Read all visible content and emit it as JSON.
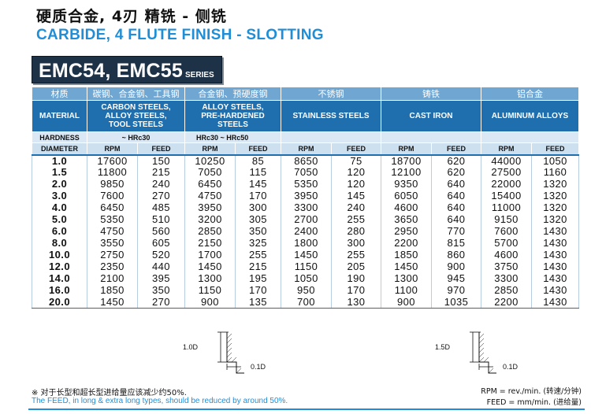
{
  "title_cn": "硬质合金, 4刃 精铣 - 侧铣",
  "title_en": "CARBIDE, 4 FLUTE FINISH - SLOTTING",
  "series": {
    "name": "EMC54, EMC55",
    "suffix": "SERIES"
  },
  "table": {
    "material_cn_label": "材质",
    "material_label": "MATERIAL",
    "hardness_label": "HARDNESS",
    "diameter_label": "DIAMETER",
    "rpm_label": "RPM",
    "feed_label": "FEED",
    "materials": [
      {
        "cn": "碳钢、合金钢、工具钢",
        "en": [
          "CARBON STEELS,",
          "ALLOY STEELS,",
          "TOOL STEELS"
        ],
        "hardness": "~ HRc30"
      },
      {
        "cn": "合金钢、预硬度钢",
        "en": [
          "ALLOY STEELS,",
          "PRE-HARDENED STEELS"
        ],
        "hardness": "HRc30 ~ HRc50"
      },
      {
        "cn": "不锈钢",
        "en": [
          "STAINLESS STEELS"
        ],
        "hardness": ""
      },
      {
        "cn": "铸铁",
        "en": [
          "CAST IRON"
        ],
        "hardness": ""
      },
      {
        "cn": "铝合金",
        "en": [
          "ALUMINUM ALLOYS"
        ],
        "hardness": ""
      }
    ],
    "rows": [
      [
        "1.0",
        "17600",
        "150",
        "10250",
        "85",
        "8650",
        "75",
        "18700",
        "620",
        "44000",
        "1050"
      ],
      [
        "1.5",
        "11800",
        "215",
        "7050",
        "115",
        "7050",
        "120",
        "12100",
        "620",
        "27500",
        "1160"
      ],
      [
        "2.0",
        "9850",
        "240",
        "6450",
        "145",
        "5350",
        "120",
        "9350",
        "640",
        "22000",
        "1320"
      ],
      [
        "3.0",
        "7600",
        "270",
        "4750",
        "170",
        "3950",
        "145",
        "6050",
        "640",
        "15400",
        "1320"
      ],
      [
        "4.0",
        "6450",
        "485",
        "3950",
        "300",
        "3300",
        "240",
        "4600",
        "640",
        "11000",
        "1320"
      ],
      [
        "5.0",
        "5350",
        "510",
        "3200",
        "305",
        "2700",
        "255",
        "3650",
        "640",
        "9150",
        "1320"
      ],
      [
        "6.0",
        "4750",
        "560",
        "2850",
        "350",
        "2400",
        "280",
        "2950",
        "770",
        "7600",
        "1430"
      ],
      [
        "8.0",
        "3550",
        "605",
        "2150",
        "325",
        "1800",
        "300",
        "2200",
        "815",
        "5700",
        "1430"
      ],
      [
        "10.0",
        "2750",
        "520",
        "1700",
        "255",
        "1450",
        "255",
        "1850",
        "860",
        "4600",
        "1430"
      ],
      [
        "12.0",
        "2350",
        "440",
        "1450",
        "215",
        "1150",
        "205",
        "1450",
        "900",
        "3750",
        "1430"
      ],
      [
        "14.0",
        "2100",
        "395",
        "1300",
        "195",
        "1050",
        "190",
        "1300",
        "945",
        "3300",
        "1430"
      ],
      [
        "16.0",
        "1850",
        "350",
        "1150",
        "170",
        "950",
        "170",
        "1100",
        "970",
        "2850",
        "1430"
      ],
      [
        "20.0",
        "1450",
        "270",
        "900",
        "135",
        "700",
        "130",
        "900",
        "1035",
        "2200",
        "1430"
      ]
    ]
  },
  "diagrams": [
    {
      "depth": "1.0D",
      "width": "0.1D"
    },
    {
      "depth": "1.5D",
      "width": "0.1D"
    }
  ],
  "notes": {
    "cn": "※ 对于长型和超长型进给量应该减少约50%.",
    "en": "The FEED, in long & extra long types, should be reduced by around 50%."
  },
  "units": {
    "rpm": "RPM = rev./min. (转速/分钟)",
    "feed": "FEED = mm/min. (进给量)"
  }
}
